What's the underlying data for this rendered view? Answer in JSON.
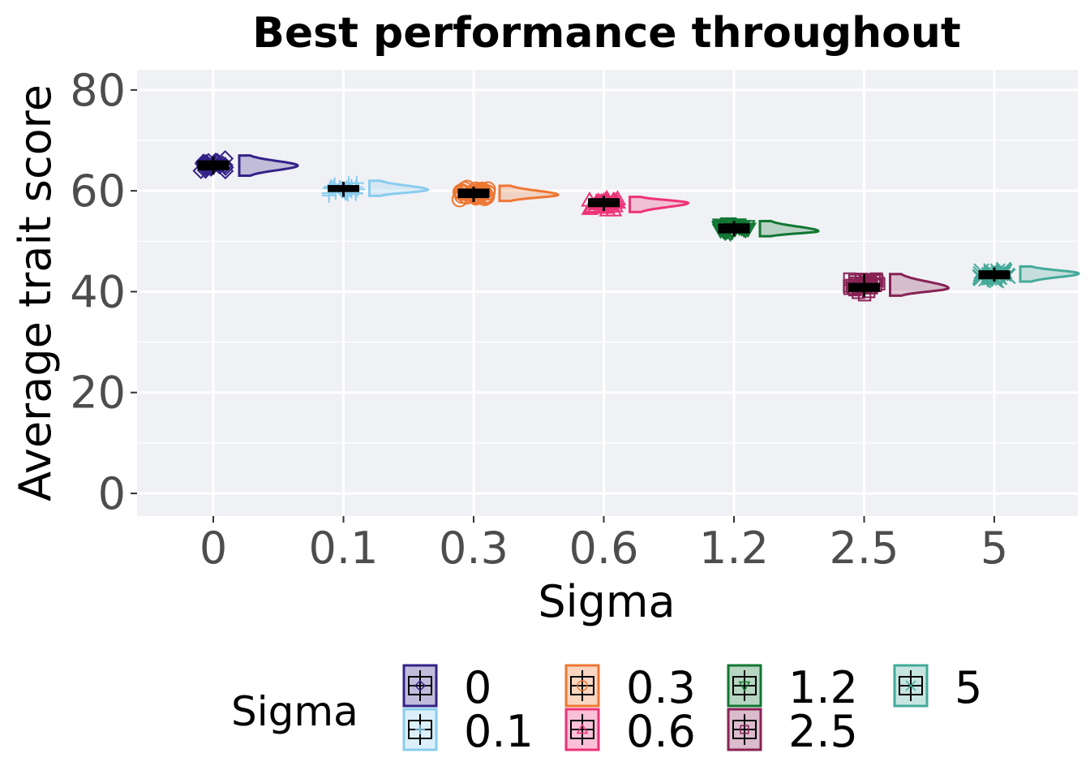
{
  "chart_data": {
    "type": "raincloud",
    "title": "Best performance throughout",
    "xlabel": "Sigma",
    "ylabel": "Average trait score",
    "ylim": [
      -4.5,
      84
    ],
    "yticks": [
      0,
      20,
      40,
      60,
      80
    ],
    "grid": true,
    "legend_position": "bottom",
    "legend_title": "Sigma",
    "categories": [
      "0",
      "0.1",
      "0.3",
      "0.6",
      "1.2",
      "2.5",
      "5"
    ],
    "series": [
      {
        "name": "0",
        "color": "#332288",
        "shape": "diamond",
        "median": 65.0,
        "q1": 64.3,
        "q3": 65.8,
        "min": 63.2,
        "max": 66.8,
        "violin_low": 63.0,
        "violin_high": 67.0,
        "violin_mode": 65.0
      },
      {
        "name": "0.1",
        "color": "#88CCEE",
        "shape": "plus",
        "median": 60.4,
        "q1": 60.0,
        "q3": 60.9,
        "min": 58.8,
        "max": 61.8,
        "violin_low": 59.0,
        "violin_high": 62.0,
        "violin_mode": 60.2
      },
      {
        "name": "0.3",
        "color": "#EE7733",
        "shape": "circle",
        "median": 59.5,
        "q1": 58.8,
        "q3": 60.2,
        "min": 57.8,
        "max": 60.8,
        "violin_low": 58.0,
        "violin_high": 61.0,
        "violin_mode": 59.2
      },
      {
        "name": "0.6",
        "color": "#EE3377",
        "shape": "triangle-up",
        "median": 57.5,
        "q1": 57.0,
        "q3": 58.3,
        "min": 56.0,
        "max": 59.0,
        "violin_low": 55.8,
        "violin_high": 58.8,
        "violin_mode": 57.6
      },
      {
        "name": "1.2",
        "color": "#117733",
        "shape": "triangle-down",
        "median": 52.5,
        "q1": 51.8,
        "q3": 53.3,
        "min": 51.0,
        "max": 54.0,
        "violin_low": 51.0,
        "violin_high": 54.0,
        "violin_mode": 52.0
      },
      {
        "name": "2.5",
        "color": "#882255",
        "shape": "square",
        "median": 40.8,
        "q1": 40.2,
        "q3": 41.5,
        "min": 39.0,
        "max": 43.5,
        "violin_low": 39.2,
        "violin_high": 43.5,
        "violin_mode": 40.7
      },
      {
        "name": "5",
        "color": "#44AA99",
        "shape": "cross",
        "median": 43.3,
        "q1": 42.7,
        "q3": 44.0,
        "min": 42.0,
        "max": 44.8,
        "violin_low": 42.0,
        "violin_high": 45.0,
        "violin_mode": 43.6
      }
    ]
  }
}
